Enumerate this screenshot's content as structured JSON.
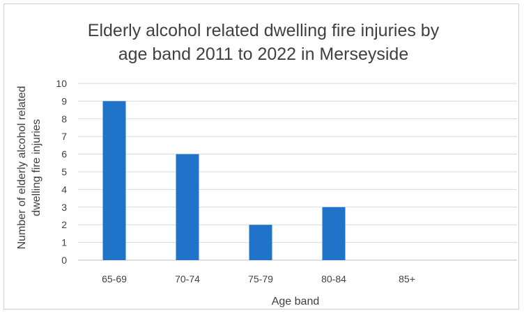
{
  "chart_data": {
    "type": "bar",
    "title_lines": [
      "Elderly alcohol related dwelling fire injuries by",
      "age band 2011 to 2022 in Merseyside"
    ],
    "xlabel": "Age band",
    "ylabel_lines": [
      "Number of elderly alcohol related",
      "dwelling fire injuries"
    ],
    "categories": [
      "65-69",
      "70-74",
      "75-79",
      "80-84",
      "85+"
    ],
    "values": [
      9,
      6,
      2,
      3,
      0
    ],
    "ylim": [
      0,
      10
    ],
    "yticks": [
      0,
      1,
      2,
      3,
      4,
      5,
      6,
      7,
      8,
      9,
      10
    ],
    "grid": true,
    "bar_color": "#1f73c8",
    "grid_color": "#d9d9d9",
    "text_color": "#404040"
  }
}
